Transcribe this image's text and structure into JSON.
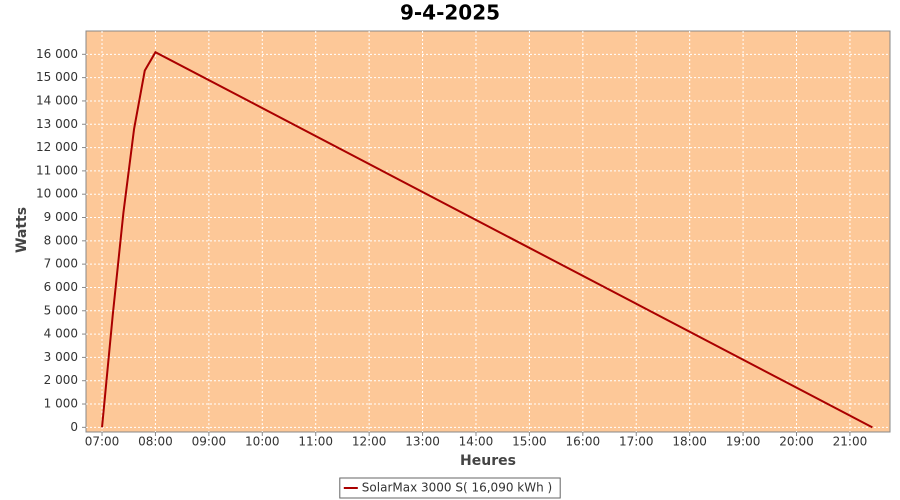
{
  "chart_data": {
    "type": "line",
    "title": "9-4-2025",
    "x_label": "Heures",
    "y_label": "Watts",
    "x": [
      7.0,
      7.2,
      7.4,
      7.6,
      7.8,
      8.0,
      21.42
    ],
    "series": [
      {
        "name": "SolarMax 3000 S( 16,090 kWh )",
        "color": "#aa0000",
        "values": [
          0,
          4800,
          9200,
          12800,
          15300,
          16090,
          0
        ]
      }
    ],
    "xlim": [
      6.7,
      21.75
    ],
    "xticks": [
      {
        "value": 7,
        "label": "07:00"
      },
      {
        "value": 8,
        "label": "08:00"
      },
      {
        "value": 9,
        "label": "09:00"
      },
      {
        "value": 10,
        "label": "10:00"
      },
      {
        "value": 11,
        "label": "11:00"
      },
      {
        "value": 12,
        "label": "12:00"
      },
      {
        "value": 13,
        "label": "13:00"
      },
      {
        "value": 14,
        "label": "14:00"
      },
      {
        "value": 15,
        "label": "15:00"
      },
      {
        "value": 16,
        "label": "16:00"
      },
      {
        "value": 17,
        "label": "17:00"
      },
      {
        "value": 18,
        "label": "18:00"
      },
      {
        "value": 19,
        "label": "19:00"
      },
      {
        "value": 20,
        "label": "20:00"
      },
      {
        "value": 21,
        "label": "21:00"
      }
    ],
    "ylim": [
      -200,
      17000
    ],
    "yticks": [
      0,
      {
        "value": 1000,
        "label": "1 000"
      },
      {
        "value": 2000,
        "label": "2 000"
      },
      {
        "value": 3000,
        "label": "3 000"
      },
      {
        "value": 4000,
        "label": "4 000"
      },
      {
        "value": 5000,
        "label": "5 000"
      },
      {
        "value": 6000,
        "label": "6 000"
      },
      {
        "value": 7000,
        "label": "7 000"
      },
      {
        "value": 8000,
        "label": "8 000"
      },
      {
        "value": 9000,
        "label": "9 000"
      },
      {
        "value": 10000,
        "label": "10 000"
      },
      {
        "value": 11000,
        "label": "11 000"
      },
      {
        "value": 12000,
        "label": "12 000"
      },
      {
        "value": 13000,
        "label": "13 000"
      },
      {
        "value": 14000,
        "label": "14 000"
      },
      {
        "value": 15000,
        "label": "15 000"
      },
      {
        "value": 16000,
        "label": "16 000"
      }
    ],
    "grid": true,
    "background": "#fdc898",
    "legend": "bottom"
  }
}
